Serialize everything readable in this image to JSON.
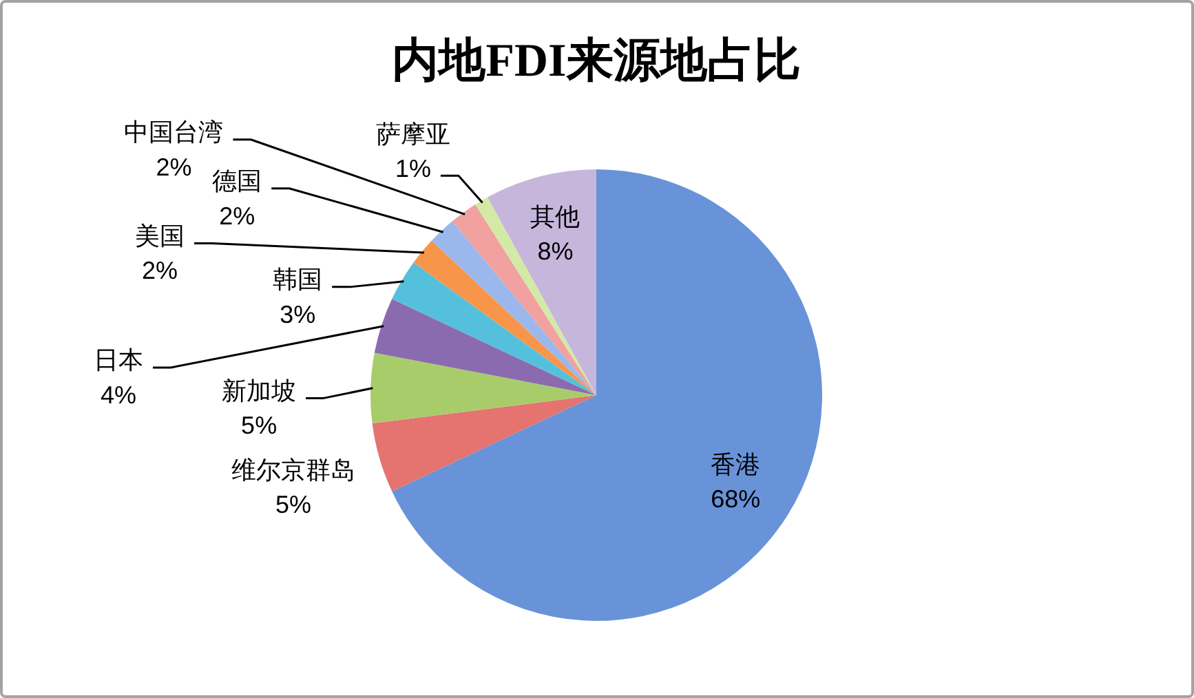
{
  "chart_data": {
    "type": "pie",
    "title": "内地FDI来源地占比",
    "categories": [
      "香港",
      "维尔京群岛",
      "新加坡",
      "日本",
      "韩国",
      "美国",
      "德国",
      "中国台湾",
      "萨摩亚",
      "其他"
    ],
    "values": [
      68,
      5,
      5,
      4,
      3,
      2,
      2,
      2,
      1,
      8
    ],
    "value_labels": [
      "68%",
      "5%",
      "5%",
      "4%",
      "3%",
      "2%",
      "2%",
      "2%",
      "1%",
      "8%"
    ],
    "colors": [
      "#6893d8",
      "#e5736f",
      "#a9cc6b",
      "#8a6bb0",
      "#55c0dc",
      "#f7964a",
      "#9ab8ec",
      "#f0a1a0",
      "#d3eaa6",
      "#c6b6dc"
    ]
  }
}
